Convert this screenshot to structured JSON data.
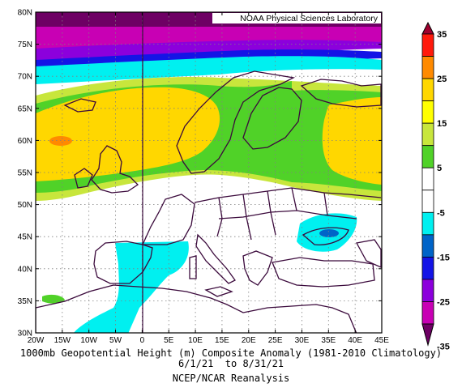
{
  "map": {
    "credit": "NOAA Physical Sciences Laboratory",
    "lat_labels": [
      "80N",
      "75N",
      "70N",
      "65N",
      "60N",
      "55N",
      "50N",
      "45N",
      "40N",
      "35N",
      "30N"
    ],
    "lon_labels": [
      "20W",
      "15W",
      "10W",
      "5W",
      "0",
      "5E",
      "10E",
      "15E",
      "20E",
      "25E",
      "30E",
      "35E",
      "40E",
      "45E"
    ]
  },
  "colorbar": {
    "labels": [
      "35",
      "25",
      "15",
      "5",
      "-5",
      "-15",
      "-25",
      "-35"
    ],
    "colors": [
      "#a0002e",
      "#ff1a0c",
      "#ff8a00",
      "#ffd700",
      "#ffff00",
      "#c8e63c",
      "#50d228",
      "#ffffff",
      "#ffffff",
      "#00f0f0",
      "#0064c8",
      "#1414e6",
      "#8c00dc",
      "#c800b4",
      "#6e0064"
    ]
  },
  "caption": {
    "line1": "1000mb Geopotential Height (m) Composite Anomaly (1981-2010 Climatology)",
    "line2": "6/1/21  to 8/31/21",
    "line3": "NCEP/NCAR Reanalysis"
  }
}
